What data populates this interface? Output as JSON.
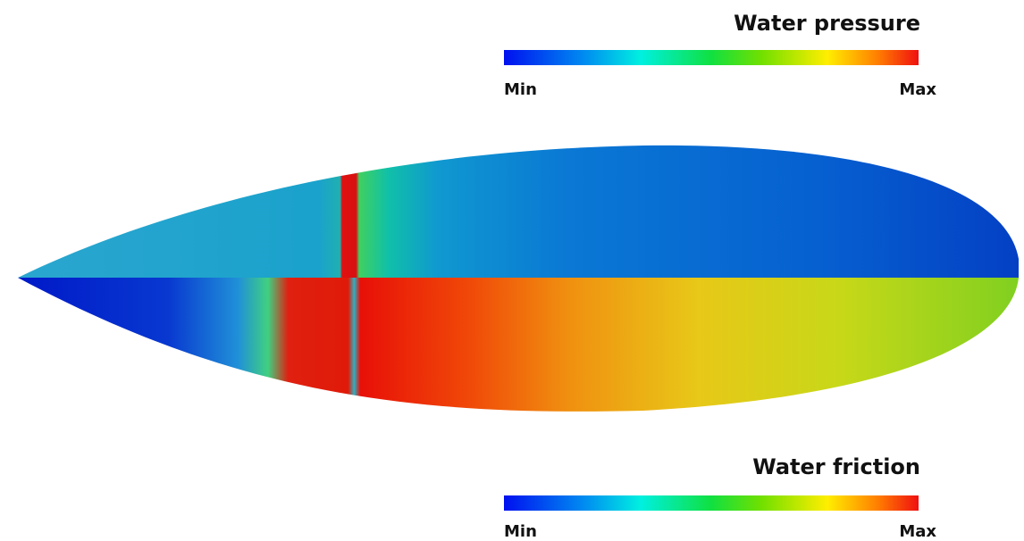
{
  "pressure_legend": {
    "title": "Water pressure",
    "min_label": "Min",
    "max_label": "Max"
  },
  "friction_legend": {
    "title": "Water friction",
    "min_label": "Min",
    "max_label": "Max"
  }
}
